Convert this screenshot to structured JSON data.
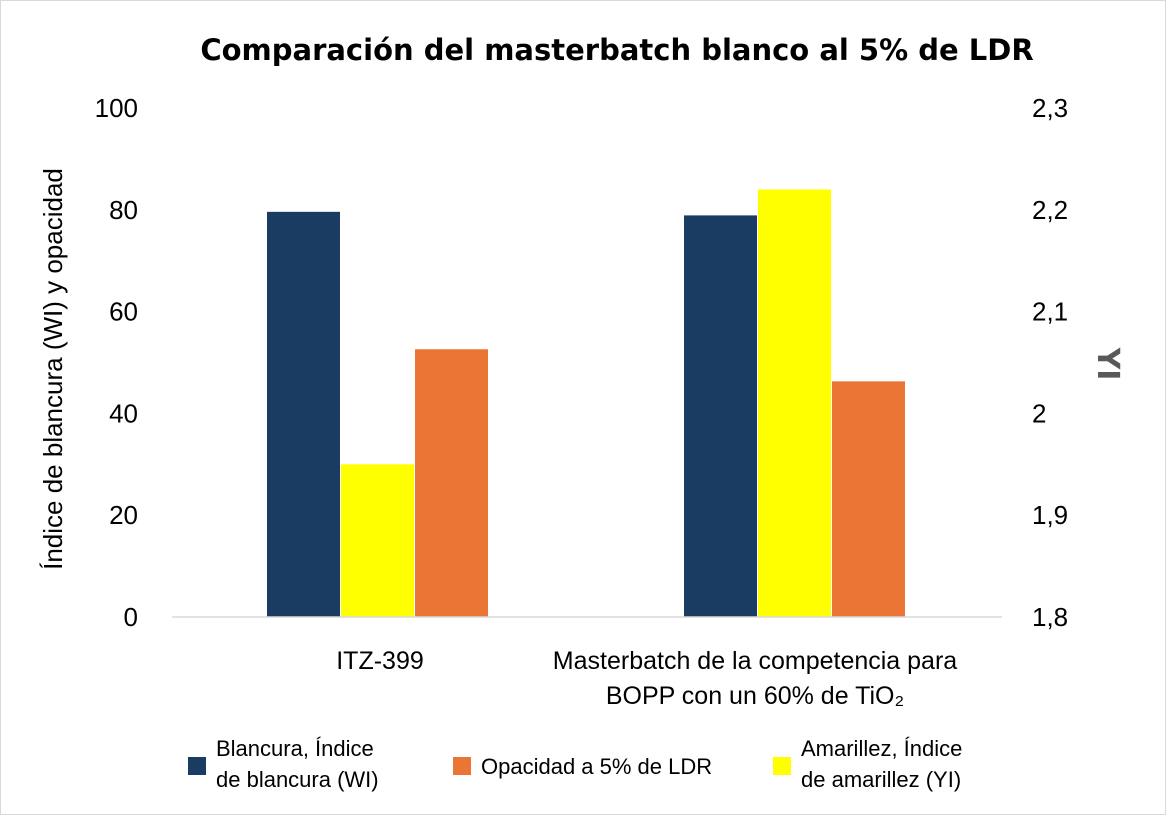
{
  "chart_data": {
    "type": "bar",
    "title": "Comparación del masterbatch blanco al 5% de LDR",
    "categories": [
      [
        "ITZ-399"
      ],
      [
        "Masterbatch de la competencia para",
        "BOPP con un 60% de TiO₂"
      ]
    ],
    "ylabel": "Índice de blancura (WI) y opacidad",
    "y2label": "YI",
    "ylim": [
      0,
      100
    ],
    "y2lim": [
      1.8,
      2.3
    ],
    "yticks": [
      "0",
      "20",
      "40",
      "60",
      "80",
      "100"
    ],
    "y2ticks": [
      "1,8",
      "1,9",
      "2",
      "2,1",
      "2,2",
      "2,3"
    ],
    "grid": false,
    "legend_position": "bottom",
    "series": [
      {
        "name": "Blancura, Índice de blancura (WI)",
        "legend_lines": [
          "Blancura, Índice",
          "de blancura (WI)"
        ],
        "axis": "left",
        "color": "#1a3c63",
        "values": [
          79.6,
          78.9
        ]
      },
      {
        "name": "Amarillez, Índice de amarillez (YI)",
        "legend_lines": [
          "Amarillez, Índice",
          "de amarillez (YI)"
        ],
        "axis": "right",
        "color": "#ffff00",
        "values": [
          1.95,
          2.22
        ]
      },
      {
        "name": "Opacidad a 5% de LDR",
        "legend_lines": [
          "Opacidad a 5% de LDR"
        ],
        "axis": "left",
        "color": "#ea7535",
        "values": [
          52.6,
          46.3
        ]
      }
    ],
    "legend_order": [
      0,
      2,
      1
    ]
  }
}
